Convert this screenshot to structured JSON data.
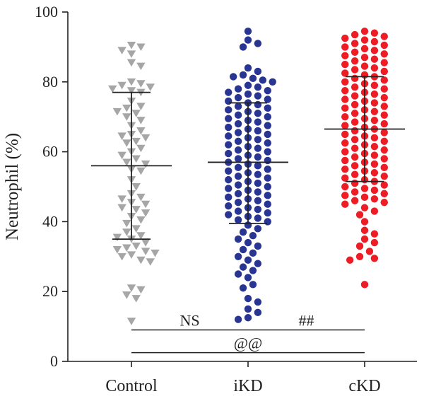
{
  "chart_data": {
    "type": "scatter",
    "subtype": "dot-plot-with-mean-and-sd",
    "title": "",
    "xlabel": "",
    "ylabel": "Neutrophil (%)",
    "ylim": [
      0,
      100
    ],
    "yticks": [
      0,
      20,
      40,
      60,
      80,
      100
    ],
    "grid": false,
    "legend": "none",
    "categories": [
      "Control",
      "iKD",
      "cKD"
    ],
    "groups": [
      {
        "category": "Control",
        "marker": "triangle-down",
        "color": "#a6a6a6",
        "mean": 56.0,
        "sd_low": 35.0,
        "sd_high": 77.0,
        "values": [
          90.5,
          90,
          89,
          88,
          85.5,
          84.5,
          80,
          79.5,
          79,
          78.5,
          78,
          77.5,
          77,
          74.5,
          73,
          72.5,
          71.5,
          71,
          70,
          69,
          67.5,
          66,
          65,
          64.5,
          64,
          63,
          62.5,
          61,
          60,
          59,
          58,
          57,
          56.5,
          55,
          54.5,
          52,
          50,
          48,
          47,
          46.5,
          45.5,
          45,
          44,
          43.5,
          42.5,
          41.5,
          40.5,
          39.5,
          38,
          37,
          36,
          35.5,
          35,
          34,
          33,
          32.5,
          32,
          31.5,
          31,
          30.5,
          30,
          29,
          28.5,
          21,
          20.5,
          19,
          18,
          11.5
        ]
      },
      {
        "category": "iKD",
        "marker": "circle",
        "color": "#283593",
        "mean": 57.0,
        "sd_low": 39.5,
        "sd_high": 74.0,
        "values": [
          94.5,
          92,
          91,
          90,
          84,
          83,
          82,
          81.5,
          81,
          80.5,
          80,
          79,
          78.5,
          78,
          77.5,
          77,
          76.5,
          76,
          75.5,
          75,
          74.5,
          74,
          73.5,
          73,
          72.5,
          72,
          71.5,
          71,
          70.5,
          70,
          69.5,
          69,
          68.5,
          68,
          67.5,
          67,
          66.5,
          66,
          65.5,
          65,
          64.5,
          64,
          63.5,
          63,
          62.5,
          62,
          61.5,
          61,
          60.5,
          60,
          59.5,
          59,
          58.5,
          58,
          57.5,
          57,
          56.5,
          56,
          55.5,
          55,
          54.5,
          54,
          53.5,
          53,
          52.5,
          52,
          51.5,
          51,
          50.5,
          50,
          49.5,
          49,
          48.5,
          48,
          47.5,
          47,
          46.5,
          46,
          45.5,
          45,
          44.5,
          44,
          43.5,
          43,
          42.5,
          42,
          41.5,
          41,
          40.5,
          40,
          39,
          38,
          37,
          36,
          35,
          34,
          33,
          32,
          31,
          30,
          29,
          28,
          27,
          26,
          25,
          24,
          22,
          21,
          18,
          17,
          15,
          14,
          12.5,
          12
        ]
      },
      {
        "category": "cKD",
        "marker": "circle",
        "color": "#ee1c25",
        "mean": 66.5,
        "sd_low": 51.5,
        "sd_high": 81.5,
        "values": [
          94.5,
          94,
          93.5,
          93,
          92.5,
          92,
          91.5,
          91,
          90.5,
          90,
          89.5,
          89,
          88.5,
          88,
          87.5,
          87,
          86.5,
          86,
          85.5,
          85,
          84.5,
          84,
          83.5,
          83,
          82.5,
          82,
          81.5,
          81,
          80.5,
          80,
          79.5,
          79,
          78.5,
          78,
          77.5,
          77,
          76.5,
          76,
          75.5,
          75,
          74.5,
          74,
          73.5,
          73,
          72.5,
          72,
          71.5,
          71,
          70.5,
          70,
          69.5,
          69,
          68.5,
          68,
          67.5,
          67,
          66.5,
          66,
          65.5,
          65,
          64.5,
          64,
          63.5,
          63,
          62.5,
          62,
          61.5,
          61,
          60.5,
          60,
          59.5,
          59,
          58.5,
          58,
          57.5,
          57,
          56.5,
          56,
          55.5,
          55,
          54.5,
          54,
          53.5,
          53,
          52.5,
          52,
          51.5,
          51,
          50.5,
          50,
          49.5,
          49,
          48.5,
          48,
          47.5,
          47,
          46.5,
          46,
          45.5,
          45,
          44,
          43,
          42,
          40,
          37.5,
          36.5,
          35,
          34,
          33,
          31.5,
          30,
          29.5,
          29,
          22
        ]
      }
    ],
    "annotations": [
      {
        "text": "NS",
        "from": "Control",
        "to": "iKD",
        "y": 9
      },
      {
        "text": "##",
        "from": "iKD",
        "to": "cKD",
        "y": 9
      },
      {
        "text": "@@",
        "from": "Control",
        "to": "cKD",
        "y": 2.5
      }
    ]
  }
}
